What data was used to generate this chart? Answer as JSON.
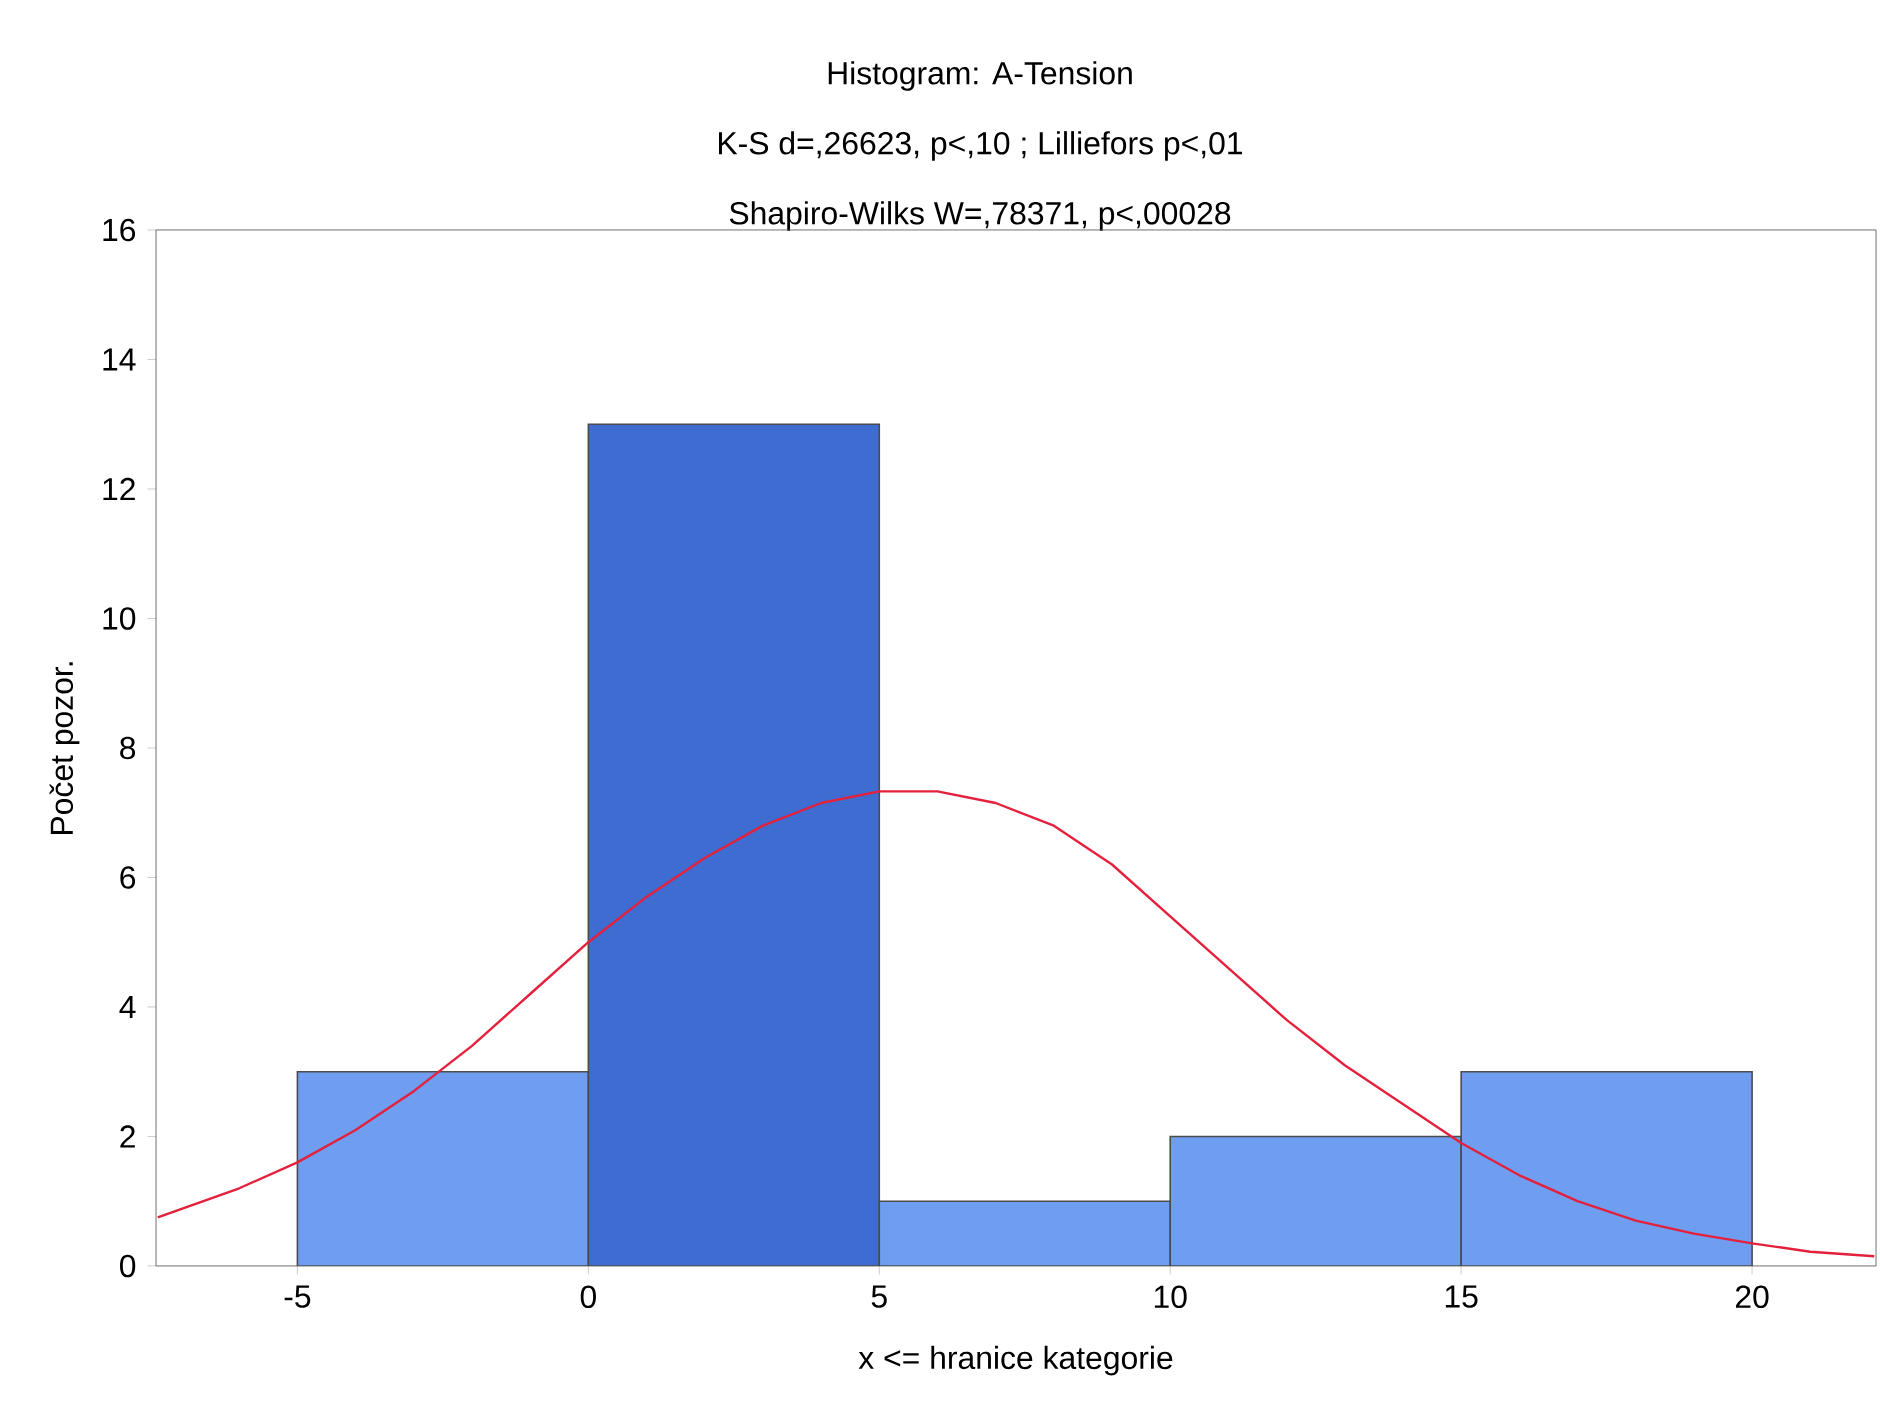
{
  "chart_data": {
    "type": "histogram",
    "title": "Histogram: A-Tension",
    "subtitle": "K-S d=,26623, p<,10 ; Lilliefors p<,01",
    "annotations": [
      "Shapiro-Wilks W=,78371, p<,00028"
    ],
    "xlabel": "x <= hranice kategorie",
    "ylabel": "Počet pozor.",
    "series": [
      {
        "bins": [
          -5,
          0,
          5,
          10,
          15,
          20
        ],
        "values": [
          3,
          13,
          1,
          2,
          3
        ],
        "colors": [
          "#6f9ef0",
          "#3f6cd0",
          "#6f9ef0",
          "#6f9ef0",
          "#6f9ef0"
        ]
      },
      {
        "type": "line",
        "color": "#e4203c",
        "x": [
          -7.4,
          -6,
          -5,
          -4,
          -3,
          -2,
          -1,
          0,
          1,
          2,
          3,
          4,
          5,
          6,
          7,
          8,
          9,
          10,
          11,
          12,
          13,
          14,
          15,
          16,
          17,
          18,
          19,
          20,
          21,
          22.1
        ],
        "values": [
          0.75,
          1.2,
          1.6,
          2.1,
          2.7,
          3.4,
          4.2,
          5.0,
          5.7,
          6.3,
          6.8,
          7.15,
          7.33,
          7.33,
          7.15,
          6.8,
          6.2,
          5.4,
          4.6,
          3.8,
          3.1,
          2.5,
          1.9,
          1.4,
          1.0,
          0.7,
          0.5,
          0.35,
          0.22,
          0.15
        ]
      }
    ],
    "xlim": [
      -7.43,
      22.13
    ],
    "ylim": [
      0,
      16
    ],
    "xticks": [
      -5,
      0,
      5,
      10,
      15,
      20
    ],
    "yticks": [
      0,
      2,
      4,
      6,
      8,
      10,
      12,
      14,
      16
    ]
  }
}
